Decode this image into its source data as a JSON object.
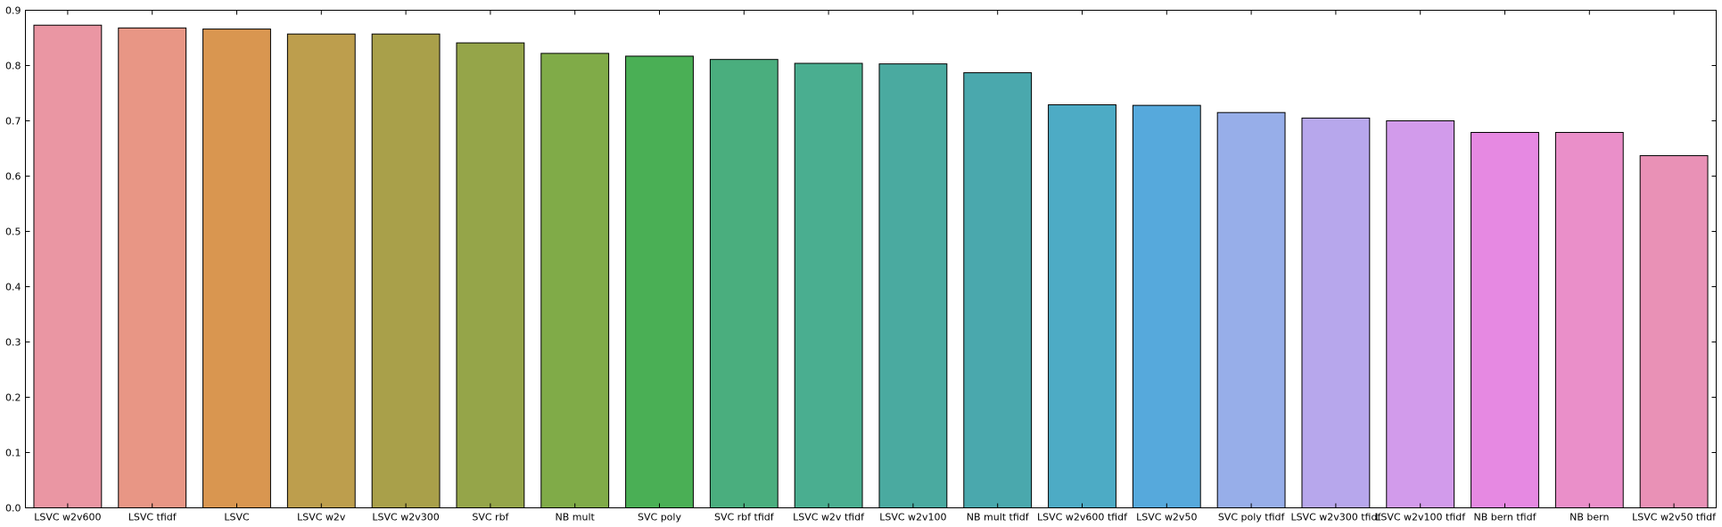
{
  "chart_data": {
    "type": "bar",
    "categories": [
      "LSVC w2v600",
      "LSVC tfidf",
      "LSVC",
      "LSVC w2v",
      "LSVC w2v300",
      "SVC rbf",
      "NB mult",
      "SVC poly",
      "SVC rbf tfidf",
      "LSVC w2v tfidf",
      "LSVC w2v100",
      "NB mult tfidf",
      "LSVC w2v600 tfidf",
      "LSVC w2v50",
      "SVC poly tfidf",
      "LSVC w2v300 tfidf",
      "LSVC w2v100 tfidf",
      "NB bern tfidf",
      "NB bern",
      "LSVC w2v50 tfidf"
    ],
    "values": [
      0.873,
      0.868,
      0.866,
      0.857,
      0.857,
      0.841,
      0.822,
      0.817,
      0.811,
      0.804,
      0.803,
      0.787,
      0.729,
      0.728,
      0.715,
      0.705,
      0.7,
      0.679,
      0.679,
      0.637
    ],
    "colors": [
      "#ea96a3",
      "#e89685",
      "#d99650",
      "#bd9e4d",
      "#a9a04a",
      "#95a549",
      "#80ab48",
      "#4aaf55",
      "#4aae7e",
      "#4aae90",
      "#4aaaa0",
      "#4aa8ad",
      "#4dabc5",
      "#56a9dc",
      "#97aee9",
      "#b7a7ec",
      "#d29beb",
      "#e689e2",
      "#ea8fc9",
      "#e991b6"
    ],
    "title": "",
    "xlabel": "",
    "ylabel": "",
    "ylim": [
      0,
      0.9
    ],
    "yticks": [
      0.0,
      0.1,
      0.2,
      0.3,
      0.4,
      0.5,
      0.6,
      0.7,
      0.8,
      0.9
    ],
    "ytick_labels": [
      "0.0",
      "0.1",
      "0.2",
      "0.3",
      "0.4",
      "0.5",
      "0.6",
      "0.7",
      "0.8",
      "0.9"
    ],
    "grid": false,
    "legend": false
  }
}
